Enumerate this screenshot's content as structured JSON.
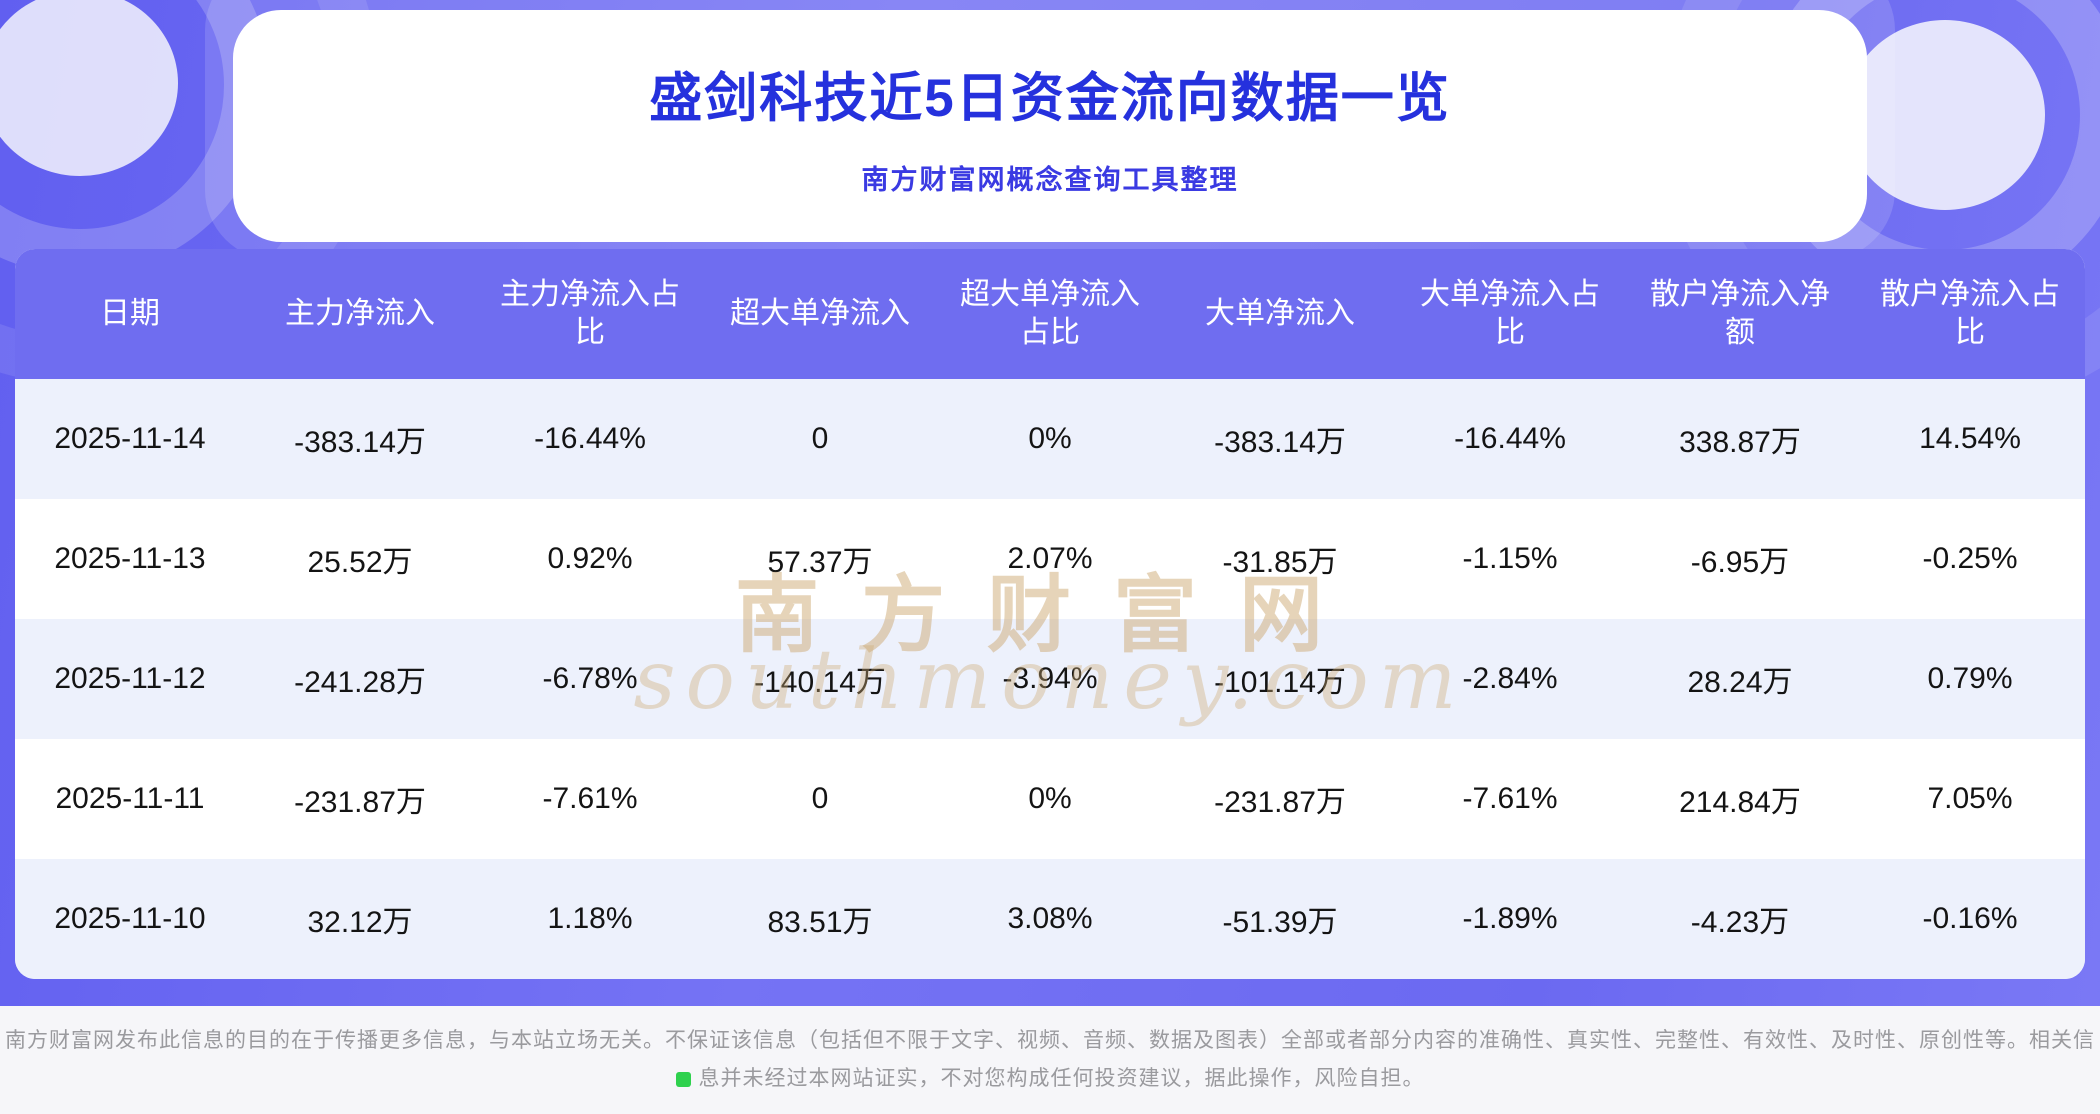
{
  "header": {
    "title": "盛剑科技近5日资金流向数据一览",
    "subtitle": "南方财富网概念查询工具整理"
  },
  "table": {
    "columns": [
      "日期",
      "主力净流入",
      "主力净流入占比",
      "超大单净流入",
      "超大单净流入占比",
      "大单净流入",
      "大单净流入占比",
      "散户净流入净额",
      "散户净流入占比"
    ],
    "rows": [
      [
        "2025-11-14",
        "-383.14万",
        "-16.44%",
        "0",
        "0%",
        "-383.14万",
        "-16.44%",
        "338.87万",
        "14.54%"
      ],
      [
        "2025-11-13",
        "25.52万",
        "0.92%",
        "57.37万",
        "2.07%",
        "-31.85万",
        "-1.15%",
        "-6.95万",
        "-0.25%"
      ],
      [
        "2025-11-12",
        "-241.28万",
        "-6.78%",
        "-140.14万",
        "-3.94%",
        "-101.14万",
        "-2.84%",
        "28.24万",
        "0.79%"
      ],
      [
        "2025-11-11",
        "-231.87万",
        "-7.61%",
        "0",
        "0%",
        "-231.87万",
        "-7.61%",
        "214.84万",
        "7.05%"
      ],
      [
        "2025-11-10",
        "32.12万",
        "1.18%",
        "83.51万",
        "3.08%",
        "-51.39万",
        "-1.89%",
        "-4.23万",
        "-0.16%"
      ]
    ]
  },
  "chart_data": {
    "type": "table",
    "title": "盛剑科技近5日资金流向数据一览",
    "columns": [
      "日期",
      "主力净流入",
      "主力净流入占比",
      "超大单净流入",
      "超大单净流入占比",
      "大单净流入",
      "大单净流入占比",
      "散户净流入净额",
      "散户净流入占比"
    ],
    "rows": [
      [
        "2025-11-14",
        "-383.14万",
        "-16.44%",
        "0",
        "0%",
        "-383.14万",
        "-16.44%",
        "338.87万",
        "14.54%"
      ],
      [
        "2025-11-13",
        "25.52万",
        "0.92%",
        "57.37万",
        "2.07%",
        "-31.85万",
        "-1.15%",
        "-6.95万",
        "-0.25%"
      ],
      [
        "2025-11-12",
        "-241.28万",
        "-6.78%",
        "-140.14万",
        "-3.94%",
        "-101.14万",
        "-2.84%",
        "28.24万",
        "0.79%"
      ],
      [
        "2025-11-11",
        "-231.87万",
        "-7.61%",
        "0",
        "0%",
        "-231.87万",
        "-7.61%",
        "214.84万",
        "7.05%"
      ],
      [
        "2025-11-10",
        "32.12万",
        "1.18%",
        "83.51万",
        "3.08%",
        "-51.39万",
        "-1.89%",
        "-4.23万",
        "-0.16%"
      ]
    ]
  },
  "watermark": {
    "cn": "南方财富网",
    "en": "southmoney.com"
  },
  "footer": {
    "line1": "南方财富网发布此信息的目的在于传播更多信息，与本站立场无关。不保证该信息（包括但不限于文字、视频、音频、数据及图表）全部或者部分内容的准确性、真实性、完整性、有效性、及时性、原创性等。相关信",
    "line2": "息并未经过本网站证实，不对您构成任何投资建议，据此操作，风险自担。"
  },
  "colors": {
    "hero_purple": "#6b69f1",
    "header_purple": "#6f6df0",
    "title_blue": "#2531dd",
    "row_alt": "#edf1fc",
    "watermark_gold": "#ceaa74",
    "footer_gray": "#9a9a9e",
    "green_marker": "#2fd14e"
  }
}
